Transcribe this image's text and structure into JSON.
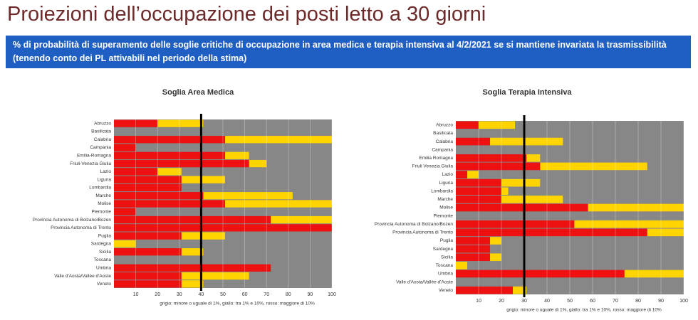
{
  "slide": {
    "title": "Proiezioni dell’occupazione dei posti letto a 30 giorni",
    "subtitle": "% di probabilità di superamento delle soglie critiche di occupazione in area medica e terapia intensiva al 4/2/2021 se si mantiene invariata la trasmissibilità (tenendo conto dei PL attivabili nel periodo della stima)"
  },
  "chart_data": [
    {
      "type": "stacked_barh",
      "title": "Soglia Area Medica",
      "caption": "grigio: minore o uguale di 1%, giallo: tra 1% e 10%, rosso: maggiore di 10%",
      "categories": [
        "Abruzzo",
        "Basilicata",
        "Calabria",
        "Campania",
        "Emilia-Romagna",
        "Friuli-Venezia Giulia",
        "Lazio",
        "Liguria",
        "Lombardia",
        "Marche",
        "Molise",
        "Piemonte",
        "Provincia Autonoma di Bolzano/Bozen",
        "Provincia Autonoma di Trento",
        "Puglia",
        "Sardegna",
        "Sicilia",
        "Toscana",
        "Umbria",
        "Valle d'Aosta/Vallée d'Aoste",
        "Veneto"
      ],
      "series": [
        {
          "color": "#ee1111",
          "values": [
            20,
            0,
            51,
            10,
            51,
            62,
            20,
            31,
            31,
            41,
            51,
            10,
            72,
            100,
            31,
            0,
            31,
            0,
            72,
            31,
            31
          ]
        },
        {
          "color": "#ffd400",
          "values": [
            21,
            0,
            49,
            0,
            11,
            8,
            11,
            20,
            0,
            41,
            49,
            0,
            28,
            0,
            20,
            10,
            10,
            0,
            0,
            31,
            10
          ]
        },
        {
          "color": "#878787",
          "values": [
            59,
            100,
            0,
            90,
            38,
            30,
            69,
            49,
            69,
            18,
            0,
            90,
            0,
            0,
            49,
            90,
            59,
            100,
            28,
            38,
            59
          ]
        }
      ],
      "threshold": 40,
      "xlim": [
        0,
        100
      ],
      "xticks": [
        10,
        20,
        30,
        40,
        50,
        60,
        70,
        80,
        90,
        100
      ],
      "grid": true
    },
    {
      "type": "stacked_barh",
      "title": "Soglia Terapia Intensiva",
      "caption": "grigio: minore o uguale di 1%, giallo: tra 1% e 10%, rosso: maggiore di 10%",
      "categories": [
        "Abruzzo",
        "Basilicata",
        "Calabria",
        "Campania",
        "Emilia Romagna",
        "Friuli Venezia Giulia",
        "Lazio",
        "Liguria",
        "Lombardia",
        "Marche",
        "Molise",
        "Piemonte",
        "Provincia Autonoma di Bolzano/Bozen",
        "Provincia Autonoma di Trento",
        "Puglia",
        "Sardegna",
        "Sicilia",
        "Toscana",
        "Umbria",
        "Valle d'Aosta/Vallée d'Aoste",
        "Veneto"
      ],
      "series": [
        {
          "color": "#ee1111",
          "values": [
            10,
            0,
            15,
            0,
            31,
            37,
            5,
            20,
            20,
            20,
            58,
            0,
            52,
            84,
            15,
            15,
            15,
            0,
            74,
            0,
            25
          ]
        },
        {
          "color": "#ffd400",
          "values": [
            16,
            0,
            32,
            0,
            6,
            47,
            5,
            17,
            3,
            27,
            42,
            0,
            48,
            16,
            5,
            0,
            5,
            5,
            26,
            0,
            6
          ]
        },
        {
          "color": "#878787",
          "values": [
            74,
            100,
            53,
            100,
            63,
            16,
            90,
            63,
            77,
            53,
            0,
            100,
            0,
            0,
            80,
            85,
            80,
            95,
            0,
            100,
            69
          ]
        }
      ],
      "threshold": 30,
      "xlim": [
        0,
        100
      ],
      "xticks": [
        10,
        20,
        30,
        40,
        50,
        60,
        70,
        80,
        90,
        100
      ],
      "grid": true
    }
  ]
}
